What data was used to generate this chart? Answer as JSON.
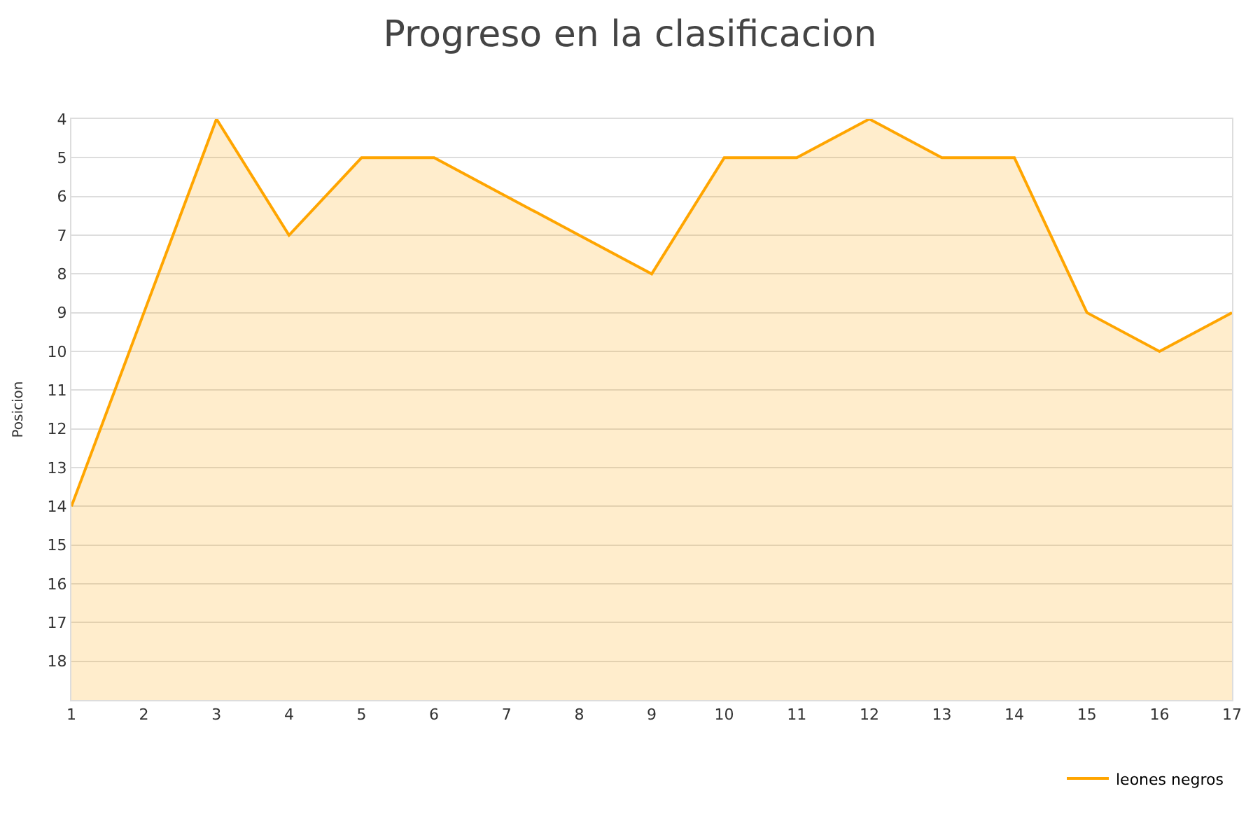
{
  "chart_data": {
    "type": "line",
    "title": "Progreso en la clasificacion",
    "ylabel": "Posicion",
    "x": [
      1,
      2,
      3,
      4,
      5,
      6,
      7,
      8,
      9,
      10,
      11,
      12,
      13,
      14,
      15,
      16,
      17
    ],
    "series": [
      {
        "name": "leones negros",
        "color": "#ffa500",
        "values": [
          14,
          9,
          4,
          7,
          5,
          5,
          6,
          7,
          8,
          5,
          5,
          4,
          5,
          5,
          9,
          10,
          9
        ],
        "lower": [
          19,
          19,
          19,
          19,
          19,
          19,
          19,
          19,
          19,
          19,
          19,
          19,
          19,
          19,
          19,
          19,
          19
        ],
        "upper": [
          14,
          9,
          4,
          7,
          5,
          5,
          6,
          7,
          8,
          5,
          5,
          4,
          5,
          5,
          9,
          10,
          9
        ]
      }
    ],
    "xlim": [
      1,
      17
    ],
    "xticks": [
      1,
      2,
      3,
      4,
      5,
      6,
      7,
      8,
      9,
      10,
      11,
      12,
      13,
      14,
      15,
      16,
      17
    ],
    "ylim": [
      19,
      4
    ],
    "yticks": [
      4,
      5,
      6,
      7,
      8,
      9,
      10,
      11,
      12,
      13,
      14,
      15,
      16,
      17,
      18
    ],
    "grid": "y",
    "legend": "bottom right",
    "marker": "none",
    "line_style": "solid"
  }
}
